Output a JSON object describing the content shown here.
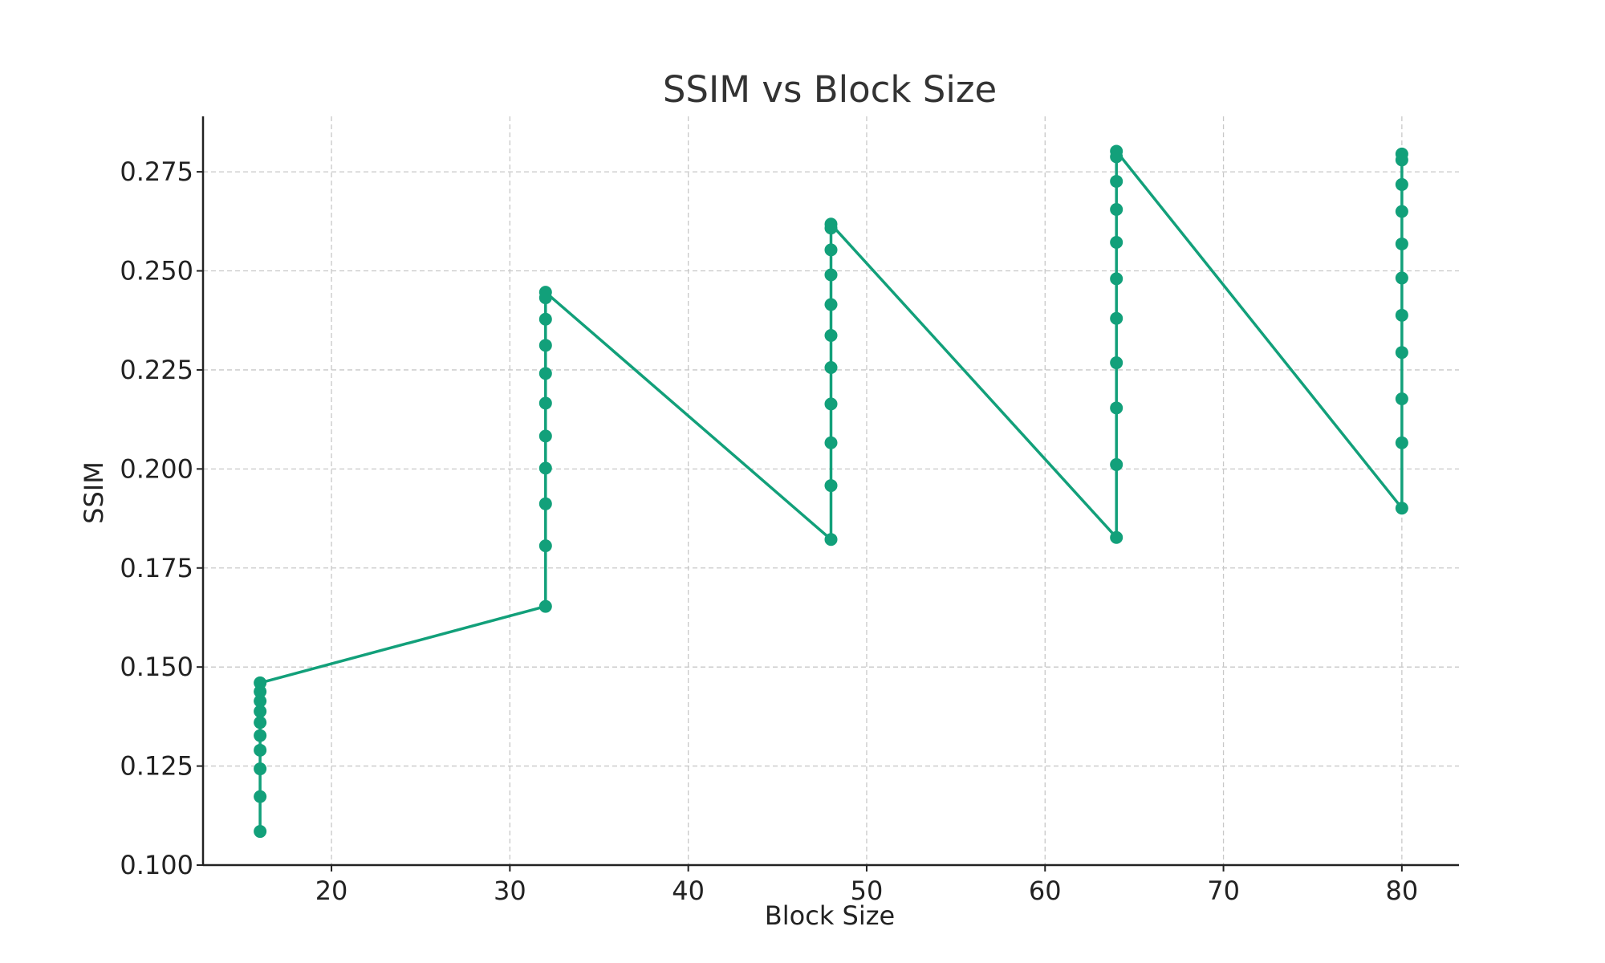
{
  "chart_data": {
    "type": "line",
    "title": "SSIM vs Block Size",
    "xlabel": "Block Size",
    "ylabel": "SSIM",
    "xlim": [
      12.8,
      83.2
    ],
    "ylim": [
      0.1,
      0.289
    ],
    "xticks": [
      20,
      30,
      40,
      50,
      60,
      70,
      80
    ],
    "yticks": [
      0.1,
      0.125,
      0.15,
      0.175,
      0.2,
      0.225,
      0.25,
      0.275
    ],
    "xtick_labels": [
      "20",
      "30",
      "40",
      "50",
      "60",
      "70",
      "80"
    ],
    "ytick_labels": [
      "0.100",
      "0.125",
      "0.150",
      "0.175",
      "0.200",
      "0.225",
      "0.250",
      "0.275"
    ],
    "grid": true,
    "color": "#12a07a",
    "series": [
      {
        "x": [
          16,
          16,
          16,
          16,
          16,
          16,
          16,
          16,
          16,
          16,
          32,
          32,
          32,
          32,
          32,
          32,
          32,
          32,
          32,
          32,
          32,
          48,
          48,
          48,
          48,
          48,
          48,
          48,
          48,
          48,
          48,
          48,
          64,
          64,
          64,
          64,
          64,
          64,
          64,
          64,
          64,
          64,
          64,
          80,
          80,
          80,
          80,
          80,
          80,
          80,
          80,
          80,
          80,
          80
        ],
        "y": [
          0.1085,
          0.1173,
          0.1243,
          0.129,
          0.1327,
          0.136,
          0.1388,
          0.1414,
          0.1438,
          0.146,
          0.1653,
          0.1806,
          0.1912,
          0.2002,
          0.2083,
          0.2166,
          0.2241,
          0.2312,
          0.2378,
          0.2432,
          0.2446,
          0.1822,
          0.1958,
          0.2066,
          0.2164,
          0.2256,
          0.2337,
          0.2415,
          0.249,
          0.2553,
          0.2608,
          0.2618,
          0.1827,
          0.2011,
          0.2154,
          0.2268,
          0.238,
          0.248,
          0.2572,
          0.2655,
          0.2726,
          0.2788,
          0.2802,
          0.1901,
          0.2066,
          0.2177,
          0.2294,
          0.2388,
          0.2482,
          0.2568,
          0.265,
          0.2718,
          0.278,
          0.2795
        ]
      }
    ]
  }
}
